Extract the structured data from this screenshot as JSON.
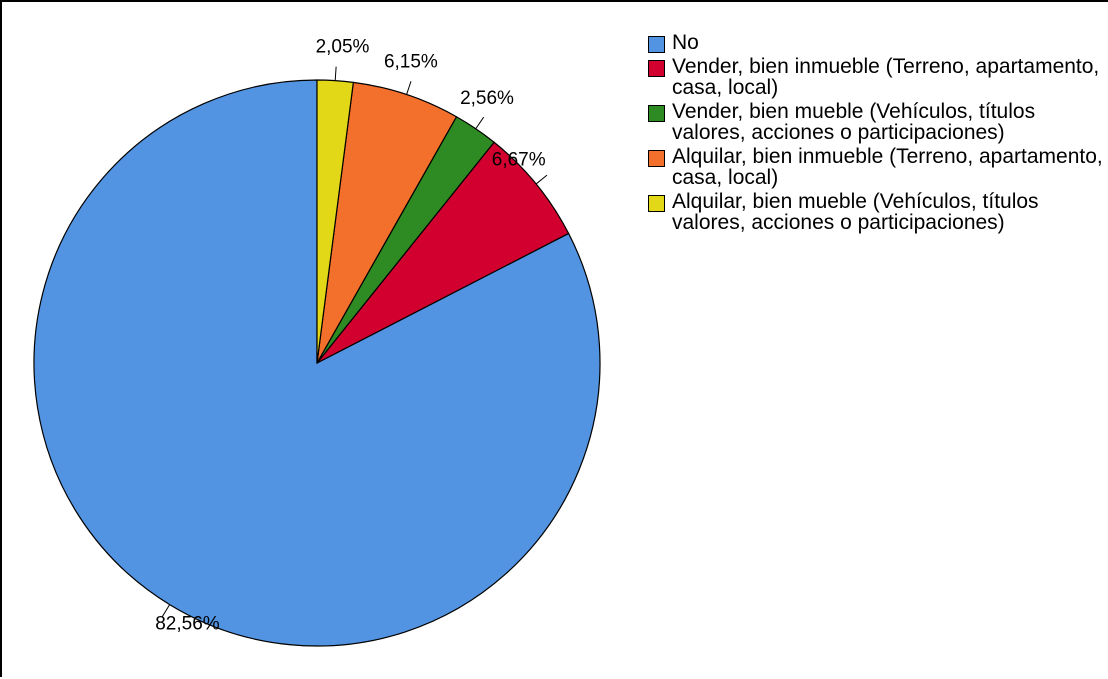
{
  "chart_data": {
    "type": "pie",
    "start_angle_deg": 0,
    "direction": "counterclockwise",
    "legend_position": "top-right",
    "slices": [
      {
        "label": "No",
        "value": 82.56,
        "value_label": "82,56%",
        "color": "#5294e2"
      },
      {
        "label": "Vender, bien inmueble (Terreno, apartamento, casa, local)",
        "value": 6.67,
        "value_label": "6,67%",
        "color": "#d2002f"
      },
      {
        "label": "Vender, bien mueble (Vehículos, títulos valores, acciones o participaciones)",
        "value": 2.56,
        "value_label": "2,56%",
        "color": "#2e8b23"
      },
      {
        "label": "Alquilar, bien inmueble (Terreno, apartamento, casa, local)",
        "value": 6.15,
        "value_label": "6,15%",
        "color": "#f26f2c"
      },
      {
        "label": "Alquilar, bien mueble (Vehículos, títulos valores, acciones o participaciones)",
        "value": 2.05,
        "value_label": "2,05%",
        "color": "#e2d818"
      }
    ]
  }
}
